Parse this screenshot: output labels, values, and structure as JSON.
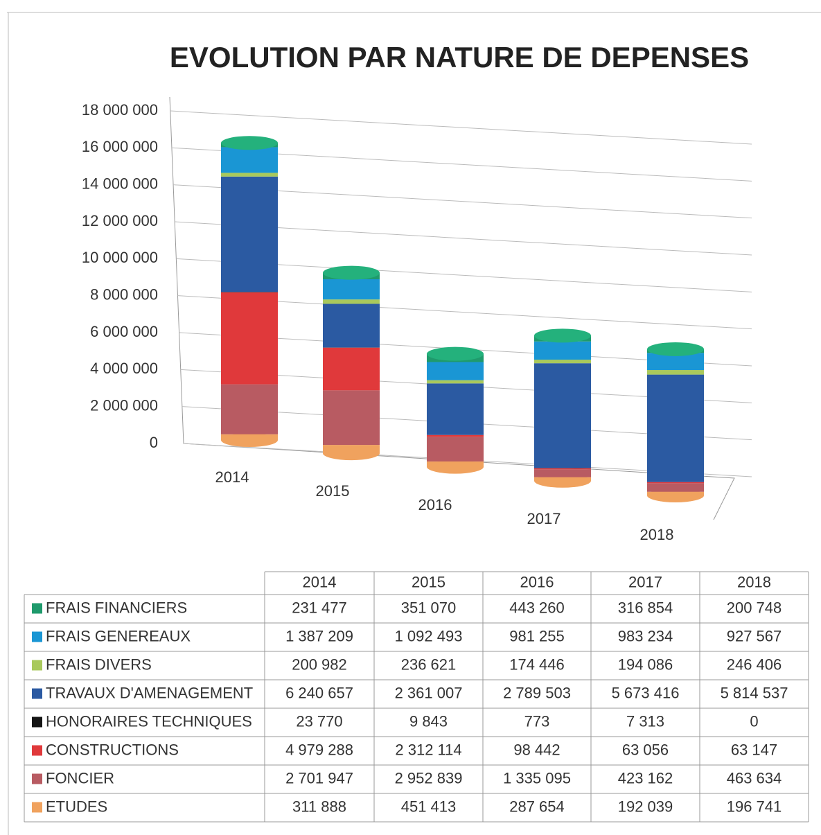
{
  "chart_data": {
    "type": "bar3d_stacked",
    "title": "EVOLUTION PAR NATURE DE DEPENSES",
    "categories": [
      "2014",
      "2015",
      "2016",
      "2017",
      "2018"
    ],
    "ylim": [
      0,
      18000000
    ],
    "yticks": [
      0,
      {
        "value": 2000000,
        "label": "2 000 000"
      },
      {
        "value": 4000000,
        "label": "4 000 000"
      },
      {
        "value": 6000000,
        "label": "6 000 000"
      },
      {
        "value": 8000000,
        "label": "8 000 000"
      },
      {
        "value": 10000000,
        "label": "10 000 000"
      },
      {
        "value": 12000000,
        "label": "12 000 000"
      },
      {
        "value": 14000000,
        "label": "14 000 000"
      },
      {
        "value": 16000000,
        "label": "16 000 000"
      },
      {
        "value": 18000000,
        "label": "18 000 000"
      }
    ],
    "grid": true,
    "series": [
      {
        "name": "FRAIS FINANCIERS",
        "color": "#1f9a6c",
        "values": [
          231477,
          351070,
          443260,
          316854,
          200748
        ],
        "value_labels": [
          "231 477",
          "351 070",
          "443 260",
          "316 854",
          "200 748"
        ]
      },
      {
        "name": "FRAIS  GENEREAUX",
        "color": "#1a96d4",
        "values": [
          1387209,
          1092493,
          981255,
          983234,
          927567
        ],
        "value_labels": [
          "1 387 209",
          "1 092 493",
          "981 255",
          "983 234",
          "927 567"
        ]
      },
      {
        "name": "FRAIS DIVERS",
        "color": "#a9c95c",
        "values": [
          200982,
          236621,
          174446,
          194086,
          246406
        ],
        "value_labels": [
          "200 982",
          "236 621",
          "174 446",
          "194 086",
          "246 406"
        ]
      },
      {
        "name": "TRAVAUX D'AMENAGEMENT",
        "color": "#2b5aa2",
        "values": [
          6240657,
          2361007,
          2789503,
          5673416,
          5814537
        ],
        "value_labels": [
          "6 240 657",
          "2 361 007",
          "2 789 503",
          "5 673 416",
          "5 814 537"
        ]
      },
      {
        "name": "HONORAIRES TECHNIQUES",
        "color": "#151515",
        "values": [
          23770,
          9843,
          773,
          7313,
          0
        ],
        "value_labels": [
          "23 770",
          "9 843",
          "773",
          "7 313",
          "0"
        ]
      },
      {
        "name": "CONSTRUCTIONS",
        "color": "#e0393b",
        "values": [
          4979288,
          2312114,
          98442,
          63056,
          63147
        ],
        "value_labels": [
          "4 979 288",
          "2 312 114",
          "98 442",
          "63 056",
          "63 147"
        ]
      },
      {
        "name": "FONCIER",
        "color": "#b85b62",
        "values": [
          2701947,
          2952839,
          1335095,
          423162,
          463634
        ],
        "value_labels": [
          "2 701 947",
          "2 952 839",
          "1 335 095",
          "423 162",
          "463 634"
        ]
      },
      {
        "name": "ETUDES",
        "color": "#f0a25e",
        "values": [
          311888,
          451413,
          287654,
          192039,
          196741
        ],
        "value_labels": [
          "311 888",
          "451 413",
          "287 654",
          "192 039",
          "196 741"
        ]
      }
    ]
  }
}
